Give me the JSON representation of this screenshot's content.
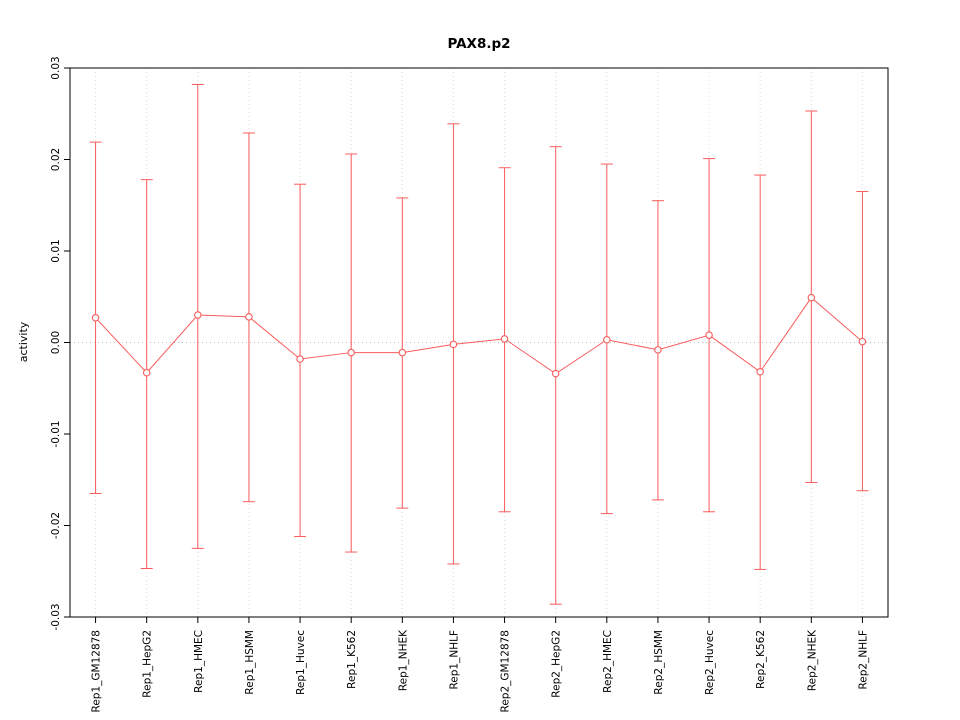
{
  "chart_data": {
    "type": "line",
    "title": "PAX8.p2",
    "xlabel": "",
    "ylabel": "activity",
    "ylim": [
      -0.03,
      0.03
    ],
    "ytick_labels": [
      "-0.03",
      "-0.02",
      "-0.01",
      "0.00",
      "0.01",
      "0.02",
      "0.03"
    ],
    "yticks": [
      -0.03,
      -0.02,
      -0.01,
      0.0,
      0.01,
      0.02,
      0.03
    ],
    "grid": "vertical-dotted-per-category, dotted zero line",
    "legend": "none",
    "marker": "open-circle",
    "categories": [
      "Rep1_GM12878",
      "Rep1_HepG2",
      "Rep1_HMEC",
      "Rep1_HSMM",
      "Rep1_Huvec",
      "Rep1_K562",
      "Rep1_NHEK",
      "Rep1_NHLF",
      "Rep2_GM12878",
      "Rep2_HepG2",
      "Rep2_HMEC",
      "Rep2_HSMM",
      "Rep2_Huvec",
      "Rep2_K562",
      "Rep2_NHEK",
      "Rep2_NHLF"
    ],
    "series": [
      {
        "name": "activity",
        "center": [
          0.0027,
          -0.0033,
          0.003,
          0.0028,
          -0.0018,
          -0.0011,
          -0.0011,
          -0.0002,
          0.0004,
          -0.0034,
          0.0003,
          -0.0008,
          0.0008,
          -0.0032,
          0.0049,
          0.0001
        ],
        "upper": [
          0.0219,
          0.0178,
          0.0282,
          0.0229,
          0.0173,
          0.0206,
          0.0158,
          0.0239,
          0.0191,
          0.0214,
          0.0195,
          0.0155,
          0.0201,
          0.0183,
          0.0253,
          0.0165
        ],
        "lower": [
          -0.0165,
          -0.0247,
          -0.0225,
          -0.0174,
          -0.0212,
          -0.0229,
          -0.0181,
          -0.0242,
          -0.0185,
          -0.0286,
          -0.0187,
          -0.0172,
          -0.0185,
          -0.0248,
          -0.0153,
          -0.0162
        ]
      }
    ],
    "colors": {
      "series": "#f85c5c",
      "grid": "#dcdcdc",
      "zero_line": "#bdbdbd",
      "axis": "#000000",
      "background": "#ffffff"
    }
  }
}
